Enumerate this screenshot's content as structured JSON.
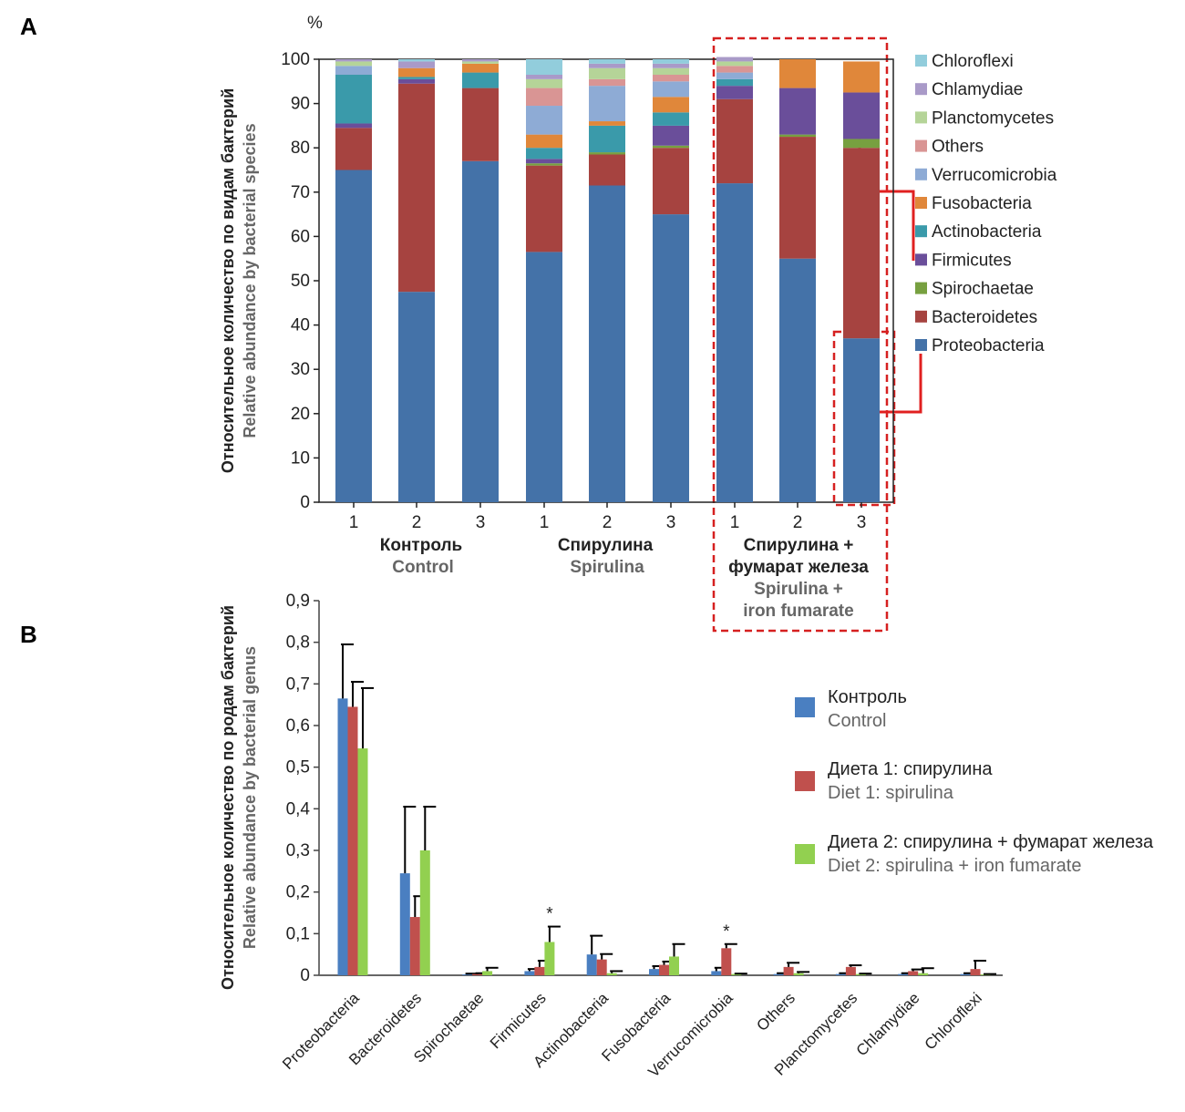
{
  "panel_a": {
    "letter": "A",
    "unit": "%",
    "ylabel_ru": "Относительное количество по видам бактерий",
    "ylabel_en": "Relative abundance by bacterial species",
    "groups": [
      {
        "ru": "Контроль",
        "en": "Control"
      },
      {
        "ru": "Спирулина",
        "en": "Spirulina"
      },
      {
        "ru_lines": [
          "Спирулина +",
          "фумарат железа"
        ],
        "en_lines": [
          "Spirulina +",
          "iron fumarate"
        ]
      }
    ]
  },
  "panel_b": {
    "letter": "B",
    "ylabel_ru": "Относительное количество по родам бактерий",
    "ylabel_en": "Relative abundance by bacterial genus",
    "legend": [
      {
        "ru": "Контроль",
        "en": "Control",
        "color": "#4a7fc1"
      },
      {
        "ru": "Диета 1: спирулина",
        "en": "Diet 1: spirulina",
        "color": "#c0504d"
      },
      {
        "ru": "Диета 2: спирулина + фумарат железа",
        "en": "Diet 2: spirulina + iron fumarate",
        "color": "#92d050"
      }
    ]
  },
  "chart_data": [
    {
      "type": "bar",
      "stacked": true,
      "ylabel": "Относительное количество по видам бактерий / Relative abundance by bacterial species",
      "ylim": [
        0,
        100
      ],
      "yticks": [
        0,
        10,
        20,
        30,
        40,
        50,
        60,
        70,
        80,
        90,
        100
      ],
      "categories": [
        "1",
        "2",
        "3",
        "1",
        "2",
        "3",
        "1",
        "2",
        "3"
      ],
      "group_labels": [
        "Контроль / Control",
        "Спирулина / Spirulina",
        "Спирулина + фумарат железа / Spirulina + iron fumarate"
      ],
      "legend_position": "right",
      "series": [
        {
          "name": "Proteobacteria",
          "color": "#4472a8",
          "values": [
            75,
            47.5,
            77,
            56.5,
            71.5,
            65,
            72,
            55,
            37
          ]
        },
        {
          "name": "Bacteroidetes",
          "color": "#a64340",
          "values": [
            9.5,
            47,
            16.5,
            19.5,
            7,
            15,
            19,
            27.5,
            43
          ]
        },
        {
          "name": "Spirochaetae",
          "color": "#77a040",
          "values": [
            0,
            0,
            0,
            0.5,
            0.5,
            0.5,
            0,
            0.5,
            2
          ]
        },
        {
          "name": "Firmicutes",
          "color": "#6a4e9a",
          "values": [
            1,
            1,
            0,
            1,
            0,
            4.5,
            3,
            10.5,
            10.5
          ]
        },
        {
          "name": "Actinobacteria",
          "color": "#3a9aaa",
          "values": [
            11,
            0.5,
            3.5,
            2.5,
            6,
            3,
            1.5,
            0,
            0
          ]
        },
        {
          "name": "Fusobacteria",
          "color": "#e0873a",
          "values": [
            0,
            2,
            2,
            3,
            1,
            3.5,
            0,
            6.5,
            7
          ]
        },
        {
          "name": "Verrucomicrobia",
          "color": "#8eabd5",
          "values": [
            2,
            0,
            0,
            6.5,
            8,
            3.5,
            1.5,
            0,
            0
          ]
        },
        {
          "name": "Others",
          "color": "#d99594",
          "values": [
            0,
            0,
            0,
            4,
            1.5,
            1.5,
            1.5,
            0,
            0
          ]
        },
        {
          "name": "Planctomycetes",
          "color": "#b5d498",
          "values": [
            1,
            0,
            0.5,
            2,
            2.5,
            1.5,
            1,
            0,
            0
          ]
        },
        {
          "name": "Chlamydiae",
          "color": "#a99ac8",
          "values": [
            0.5,
            1.5,
            0.5,
            1,
            1,
            1,
            1,
            0,
            0
          ]
        },
        {
          "name": "Chloroflexi",
          "color": "#92cddc",
          "values": [
            0,
            0.5,
            0,
            3.5,
            1,
            1,
            0,
            0,
            0
          ]
        }
      ]
    },
    {
      "type": "bar",
      "ylabel": "Относительное количество по родам бактерий / Relative abundance by bacterial genus",
      "ylim": [
        0,
        0.9
      ],
      "yticks": [
        "0",
        "0,1",
        "0,2",
        "0,3",
        "0,4",
        "0,5",
        "0,6",
        "0,7",
        "0,8",
        "0,9"
      ],
      "categories": [
        "Proteobacteria",
        "Bacteroidetes",
        "Spirochaetae",
        "Firmicutes",
        "Actinobacteria",
        "Fusobacteria",
        "Verrucomicrobia",
        "Others",
        "Planctomycetes",
        "Chlamydiae",
        "Chloroflexi"
      ],
      "legend_position": "right",
      "series": [
        {
          "name": "Контроль / Control",
          "color": "#4a7fc1",
          "values": [
            0.665,
            0.245,
            0.002,
            0.01,
            0.05,
            0.015,
            0.01,
            0.003,
            0.003,
            0.003,
            0.003
          ],
          "errors": [
            0.13,
            0.16,
            0.002,
            0.005,
            0.045,
            0.007,
            0.008,
            0.002,
            0.002,
            0.002,
            0.002
          ]
        },
        {
          "name": "Диета 1: спирулина / Diet 1: spirulina",
          "color": "#c0504d",
          "values": [
            0.645,
            0.14,
            0.003,
            0.02,
            0.038,
            0.025,
            0.065,
            0.02,
            0.02,
            0.01,
            0.015
          ],
          "errors": [
            0.06,
            0.05,
            0.002,
            0.015,
            0.013,
            0.008,
            0.01,
            0.01,
            0.004,
            0.004,
            0.02
          ]
        },
        {
          "name": "Диета 2: спирулина + фумарат железа / Diet 2: spirulina + iron fumarate",
          "color": "#92d050",
          "values": [
            0.545,
            0.3,
            0.01,
            0.08,
            0.005,
            0.045,
            0.003,
            0.005,
            0.003,
            0.005,
            0.002
          ],
          "errors": [
            0.145,
            0.105,
            0.008,
            0.037,
            0.005,
            0.03,
            0.001,
            0.003,
            0.001,
            0.012,
            0.001
          ]
        }
      ],
      "significance": [
        {
          "category": "Firmicutes",
          "series": 2,
          "mark": "*"
        },
        {
          "category": "Verrucomicrobia",
          "series": 1,
          "mark": "*"
        }
      ]
    }
  ]
}
